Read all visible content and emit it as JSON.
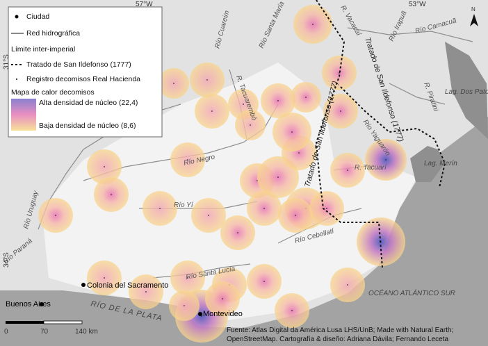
{
  "legend": {
    "city": "Ciudad",
    "rivers": "Red hidrográfica",
    "boundary_title": "Límite inter-imperial",
    "treaty": "Tratado de San Ildefonso (1777)",
    "records": "Registro decomisos Real Hacienda",
    "heatmap_title": "Mapa de calor decomisos",
    "high": "Alta densidad de núcleo (22,4)",
    "low": "Baja densidad de núcleo (8,6)"
  },
  "graticule": {
    "lon": [
      "57°W",
      "53°W"
    ],
    "lat": [
      "31°S",
      "34°S"
    ]
  },
  "cities": [
    "Colonia del Sacramento",
    "Buenos Aires",
    "Montevideo"
  ],
  "water": [
    "RÍO DE LA PLATA",
    "OCÉANO ATLÁNTICO SUR",
    "Lag. Dos Patos",
    "Lag. Merín"
  ],
  "rivers": [
    "Río Cuareim",
    "Río Negro",
    "Río Yí",
    "Río Santa Lucía",
    "Río Cebollatí",
    "R. Tacuarí",
    "Río Yaguarón",
    "Río Uruguay",
    "Río Paraná",
    "R. Tacuarembó",
    "Río Santa María",
    "R. Vacacaí",
    "Río Camacuã",
    "Río Irapuã",
    "R. Piratini"
  ],
  "treaty_labels": [
    "Tratado de San Ildefonso (1777)",
    "Tratado de San Ildefonso (1777)"
  ],
  "scale": [
    "0",
    "70",
    "140 km"
  ],
  "north": "N",
  "source": [
    "Fuente: Atlas Digital da América Lusa LHS/UnB; Made with Natural Earth;",
    "OpenStreetMap. Cartografía & diseño: Adriana Dávila; Fernando Leceta"
  ]
}
